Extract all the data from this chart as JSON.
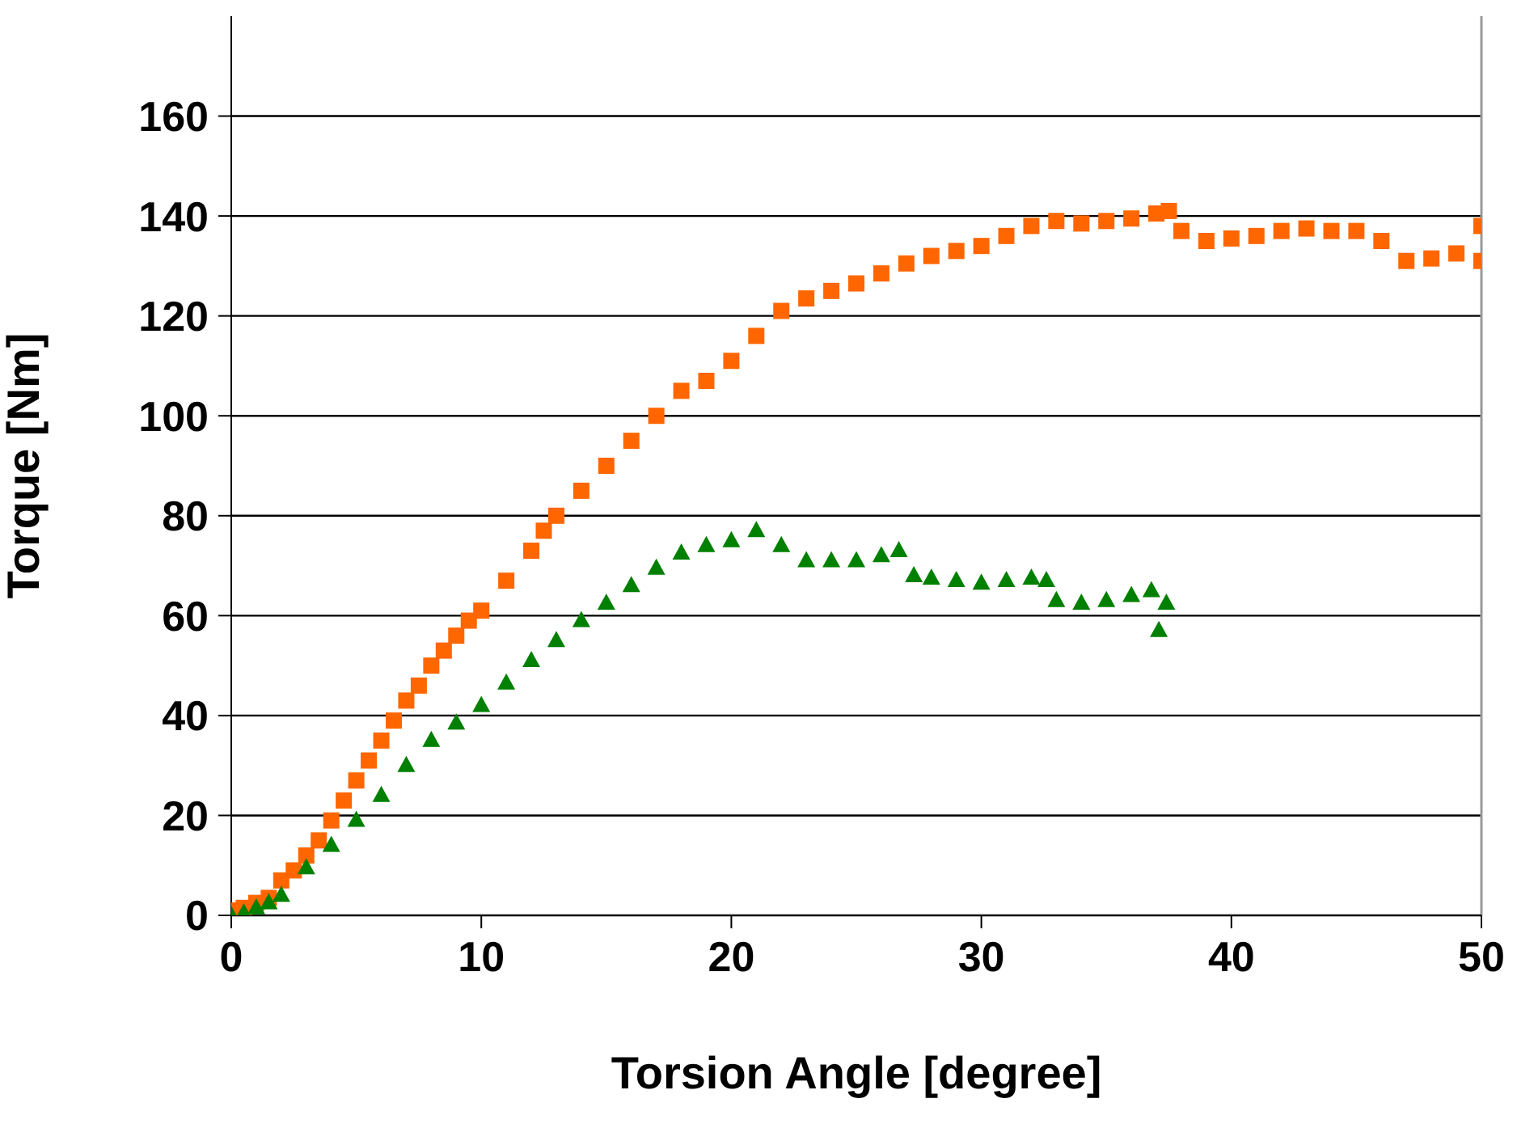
{
  "chart_data": {
    "type": "scatter",
    "xlabel": "Torsion Angle [degree]",
    "ylabel": "Torque [Nm]",
    "xlim": [
      0,
      50
    ],
    "xticks": [
      0,
      10,
      20,
      30,
      40,
      50
    ],
    "ylim": [
      0,
      180
    ],
    "yticks": [
      0,
      20,
      40,
      60,
      80,
      100,
      120,
      140,
      160
    ],
    "grid": "y",
    "legend": false,
    "series": [
      {
        "color": "#ff6600",
        "marker": "square",
        "x": [
          0,
          0.5,
          1,
          1.5,
          2,
          2.5,
          3,
          3.5,
          4,
          4.5,
          5,
          5.5,
          6,
          6.5,
          7,
          7.5,
          8,
          8.5,
          9,
          9.5,
          10,
          11,
          12,
          12.5,
          13,
          14,
          15,
          16,
          17,
          18,
          19,
          20,
          21,
          22,
          23,
          24,
          25,
          26,
          27,
          28,
          29,
          30,
          31,
          32,
          33,
          34,
          35,
          36,
          37,
          37.5,
          38,
          39,
          40,
          41,
          42,
          43,
          44,
          45,
          46,
          47,
          48,
          49,
          50,
          50
        ],
        "values": [
          1,
          1.5,
          2.5,
          3.5,
          7,
          9,
          12,
          15,
          19,
          23,
          27,
          31,
          35,
          39,
          43,
          46,
          50,
          53,
          56,
          59,
          61,
          67,
          73,
          77,
          80,
          85,
          90,
          95,
          100,
          105,
          107,
          111,
          116,
          121,
          123.5,
          125,
          126.5,
          128.5,
          130.5,
          132,
          133,
          134,
          136,
          138,
          139,
          138.5,
          139,
          139.5,
          140.5,
          141,
          137,
          135,
          135.5,
          136,
          137,
          137.5,
          137,
          137,
          135,
          131,
          131.5,
          132.5,
          131,
          138
        ]
      },
      {
        "color": "#008000",
        "marker": "triangle",
        "x": [
          0,
          0.5,
          1,
          1.5,
          2,
          3,
          4,
          5,
          6,
          7,
          8,
          9,
          10,
          11,
          12,
          13,
          14,
          15,
          16,
          17,
          18,
          19,
          20,
          21,
          22,
          23,
          24,
          25,
          26,
          26.7,
          27.3,
          28,
          29,
          30,
          31,
          32,
          32.6,
          33,
          34,
          35,
          36,
          36.8,
          37.4,
          37.1
        ],
        "values": [
          0,
          0.5,
          1.5,
          2.5,
          4,
          9.5,
          14,
          19,
          24,
          30,
          35,
          38.5,
          42,
          46.5,
          51,
          55,
          59,
          62.5,
          66,
          69.5,
          72.5,
          74,
          75,
          77,
          74,
          71,
          71,
          71,
          72,
          73,
          68,
          67.5,
          67,
          66.5,
          67,
          67.5,
          67,
          63,
          62.5,
          63,
          64,
          65,
          62.5,
          57
        ]
      }
    ]
  }
}
